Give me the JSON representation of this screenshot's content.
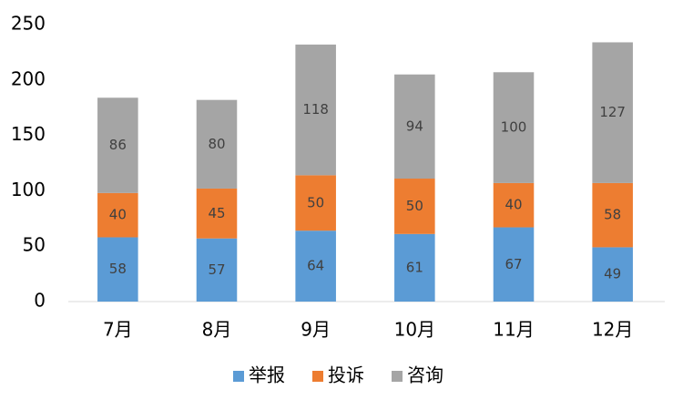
{
  "chart_data": {
    "type": "stacked_bar",
    "categories": [
      "7月",
      "8月",
      "9月",
      "10月",
      "11月",
      "12月"
    ],
    "series": [
      {
        "name": "举报",
        "color": "#5b9bd5",
        "values": [
          58,
          57,
          64,
          61,
          67,
          49
        ]
      },
      {
        "name": "投诉",
        "color": "#ed7d31",
        "values": [
          40,
          45,
          50,
          50,
          40,
          58
        ]
      },
      {
        "name": "咨询",
        "color": "#a5a5a5",
        "values": [
          86,
          80,
          118,
          94,
          100,
          127
        ]
      }
    ],
    "ylim": [
      0,
      250
    ],
    "yticks": [
      0,
      50,
      100,
      150,
      200,
      250
    ],
    "grid": false,
    "legend": "bottom"
  }
}
